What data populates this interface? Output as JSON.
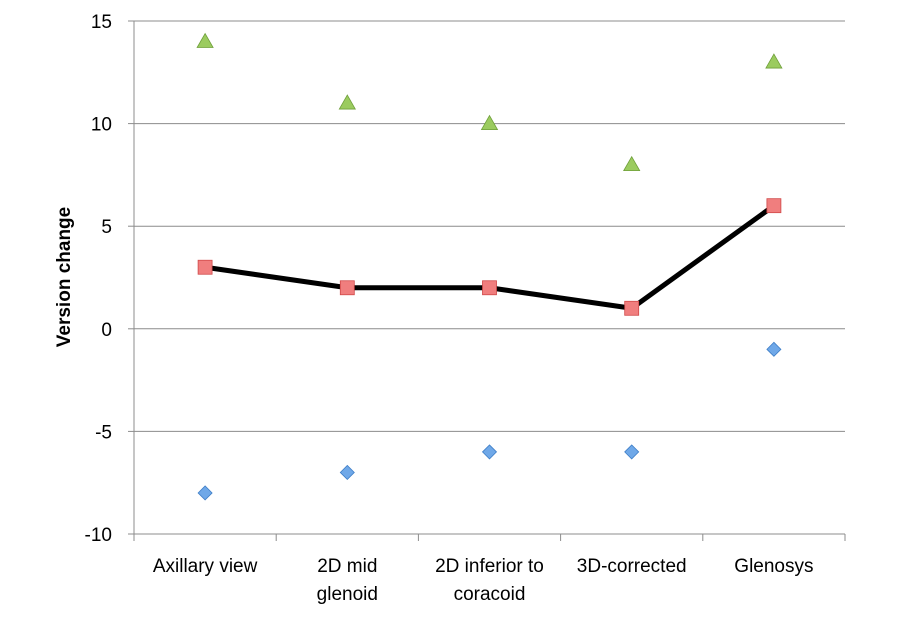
{
  "chart_data": {
    "type": "line",
    "title": "",
    "xlabel": "",
    "ylabel": "Version change",
    "ylim": [
      -10,
      15
    ],
    "yticks": [
      15,
      10,
      5,
      0,
      -5,
      -10
    ],
    "grid": true,
    "legend": "none",
    "categories": [
      [
        "Axillary view"
      ],
      [
        "2D mid",
        "glenoid"
      ],
      [
        "2D inferior to",
        "coracoid"
      ],
      [
        "3D-corrected"
      ],
      [
        "Glenosys"
      ]
    ],
    "series": [
      {
        "marker": "triangle",
        "color": "#9BCB5F",
        "line": false,
        "values": [
          14,
          11,
          10,
          8,
          13
        ]
      },
      {
        "marker": "square",
        "color": "#F07E7E",
        "line": true,
        "line_color": "#000000",
        "values": [
          3,
          2,
          2,
          1,
          6
        ]
      },
      {
        "marker": "diamond",
        "color": "#6FA8E8",
        "line": false,
        "values": [
          -8,
          -7,
          -6,
          -6,
          -1
        ]
      }
    ]
  }
}
